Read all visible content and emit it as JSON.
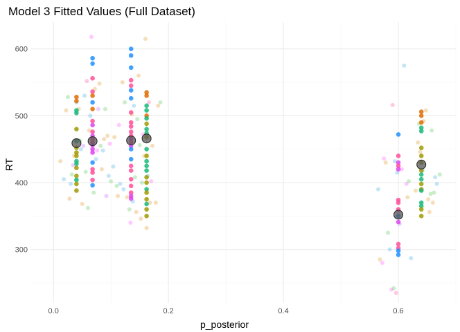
{
  "chart_data": {
    "type": "scatter",
    "title": "Model 3 Fitted Values (Full Dataset)",
    "xlabel": "p_posterior",
    "ylabel": "RT",
    "xlim": [
      -0.04,
      0.7
    ],
    "ylim": [
      220,
      640
    ],
    "xticks": [
      0.0,
      0.2,
      0.4,
      0.6
    ],
    "xtick_labels": [
      "0.0",
      "0.2",
      "0.4",
      "0.6"
    ],
    "yticks": [
      300,
      400,
      500,
      600
    ],
    "ytick_labels": [
      "300",
      "400",
      "500",
      "600"
    ],
    "grid": true,
    "legend": "none",
    "series": [
      {
        "role": "raw observations (light, transparent)",
        "opacity": 0.35,
        "points": [
          [
            0.012,
            432,
            "#e6a03c"
          ],
          [
            0.018,
            405,
            "#56b4e9"
          ],
          [
            0.022,
            508,
            "#e6a03c"
          ],
          [
            0.025,
            528,
            "#66cc66"
          ],
          [
            0.028,
            376,
            "#e6a03c"
          ],
          [
            0.03,
            398,
            "#56b4e9"
          ],
          [
            0.032,
            412,
            "#66cc66"
          ],
          [
            0.034,
            426,
            "#cc79ff"
          ],
          [
            0.036,
            440,
            "#e6a03c"
          ],
          [
            0.04,
            520,
            "#56b4e9"
          ],
          [
            0.044,
            510,
            "#e6a03c"
          ],
          [
            0.046,
            463,
            "#66cc66"
          ],
          [
            0.048,
            450,
            "#56b4e9"
          ],
          [
            0.05,
            368,
            "#e6a03c"
          ],
          [
            0.052,
            455,
            "#cc79ff"
          ],
          [
            0.054,
            530,
            "#56b4e9"
          ],
          [
            0.056,
            416,
            "#66cc66"
          ],
          [
            0.058,
            552,
            "#ff66aa"
          ],
          [
            0.06,
            362,
            "#66cc66"
          ],
          [
            0.062,
            478,
            "#e6a03c"
          ],
          [
            0.064,
            500,
            "#56b4e9"
          ],
          [
            0.066,
            618,
            "#ff66ff"
          ],
          [
            0.07,
            385,
            "#66cc66"
          ],
          [
            0.072,
            540,
            "#e6a03c"
          ],
          [
            0.074,
            435,
            "#56b4e9"
          ],
          [
            0.076,
            448,
            "#ff66ff"
          ],
          [
            0.078,
            510,
            "#cc79ff"
          ],
          [
            0.08,
            548,
            "#e6a03c"
          ],
          [
            0.082,
            455,
            "#66cc66"
          ],
          [
            0.084,
            420,
            "#e6a03c"
          ],
          [
            0.086,
            448,
            "#56b4e9"
          ],
          [
            0.088,
            465,
            "#e6a03c"
          ],
          [
            0.09,
            510,
            "#66cc66"
          ],
          [
            0.092,
            380,
            "#cc79ff"
          ],
          [
            0.094,
            470,
            "#e6a03c"
          ],
          [
            0.096,
            410,
            "#56b4e9"
          ],
          [
            0.098,
            458,
            "#ff66ff"
          ],
          [
            0.1,
            402,
            "#66cc66"
          ],
          [
            0.104,
            424,
            "#56b4e9"
          ],
          [
            0.106,
            468,
            "#e6a03c"
          ],
          [
            0.11,
            395,
            "#66cc66"
          ],
          [
            0.112,
            380,
            "#e6a03c"
          ],
          [
            0.114,
            486,
            "#ff66ff"
          ],
          [
            0.116,
            398,
            "#56b4e9"
          ],
          [
            0.12,
            550,
            "#e6a03c"
          ],
          [
            0.122,
            390,
            "#56b4e9"
          ],
          [
            0.124,
            520,
            "#66cc66"
          ],
          [
            0.128,
            378,
            "#e6a03c"
          ],
          [
            0.132,
            360,
            "#66cc66"
          ],
          [
            0.134,
            340,
            "#ff66ff"
          ],
          [
            0.136,
            502,
            "#e6a03c"
          ],
          [
            0.138,
            372,
            "#56b4e9"
          ],
          [
            0.14,
            515,
            "#56b4e9"
          ],
          [
            0.142,
            408,
            "#66cc66"
          ],
          [
            0.144,
            356,
            "#e6a03c"
          ],
          [
            0.146,
            495,
            "#66cc66"
          ],
          [
            0.148,
            560,
            "#e6a03c"
          ],
          [
            0.15,
            456,
            "#66cc66"
          ],
          [
            0.152,
            346,
            "#e6a03c"
          ],
          [
            0.154,
            400,
            "#66cc66"
          ],
          [
            0.156,
            472,
            "#ff66ff"
          ],
          [
            0.158,
            440,
            "#e6a03c"
          ],
          [
            0.16,
            615,
            "#e6a03c"
          ],
          [
            0.162,
            332,
            "#e6a03c"
          ],
          [
            0.164,
            410,
            "#56b4e9"
          ],
          [
            0.166,
            520,
            "#ff66aa"
          ],
          [
            0.168,
            370,
            "#e6a03c"
          ],
          [
            0.17,
            402,
            "#ff66ff"
          ],
          [
            0.172,
            455,
            "#e6a03c"
          ],
          [
            0.178,
            370,
            "#e6a03c"
          ],
          [
            0.182,
            515,
            "#e6a03c"
          ],
          [
            0.186,
            520,
            "#66cc66"
          ],
          [
            0.565,
            390,
            "#56b4e9"
          ],
          [
            0.568,
            285,
            "#e6a03c"
          ],
          [
            0.572,
            280,
            "#ff66ff"
          ],
          [
            0.575,
            436,
            "#ff66ff"
          ],
          [
            0.578,
            430,
            "#e6a03c"
          ],
          [
            0.582,
            325,
            "#66cc66"
          ],
          [
            0.585,
            300,
            "#56b4e9"
          ],
          [
            0.588,
            240,
            "#ff66ff"
          ],
          [
            0.59,
            516,
            "#ff66aa"
          ],
          [
            0.592,
            242,
            "#66cc66"
          ],
          [
            0.594,
            432,
            "#56b4e9"
          ],
          [
            0.596,
            235,
            "#ff66aa"
          ],
          [
            0.598,
            415,
            "#56b4e9"
          ],
          [
            0.6,
            356,
            "#ff66aa"
          ],
          [
            0.602,
            338,
            "#cc79ff"
          ],
          [
            0.606,
            420,
            "#ff66ff"
          ],
          [
            0.61,
            575,
            "#56b4e9"
          ],
          [
            0.614,
            398,
            "#ff66ff"
          ],
          [
            0.616,
            378,
            "#e6a03c"
          ],
          [
            0.618,
            402,
            "#66cc66"
          ],
          [
            0.622,
            287,
            "#56b4e9"
          ],
          [
            0.63,
            388,
            "#e6a03c"
          ],
          [
            0.634,
            460,
            "#e6a03c"
          ],
          [
            0.636,
            488,
            "#66cc66"
          ],
          [
            0.638,
            446,
            "#e6a03c"
          ],
          [
            0.642,
            418,
            "#56b4e9"
          ],
          [
            0.644,
            492,
            "#e6a03c"
          ],
          [
            0.648,
            508,
            "#e6a03c"
          ],
          [
            0.652,
            375,
            "#e6a03c"
          ],
          [
            0.654,
            356,
            "#e6a03c"
          ],
          [
            0.656,
            383,
            "#66cc66"
          ],
          [
            0.658,
            478,
            "#66cc66"
          ],
          [
            0.66,
            370,
            "#e6a03c"
          ],
          [
            0.662,
            385,
            "#66cc66"
          ],
          [
            0.664,
            408,
            "#56b4e9"
          ],
          [
            0.667,
            398,
            "#56b4e9"
          ],
          [
            0.672,
            412,
            "#66cc66"
          ]
        ]
      },
      {
        "role": "fitted values (solid)",
        "opacity": 0.85,
        "points": [
          [
            0.04,
            528,
            "#e06c00"
          ],
          [
            0.04,
            522,
            "#e06c00"
          ],
          [
            0.04,
            508,
            "#17b978"
          ],
          [
            0.04,
            504,
            "#17b978"
          ],
          [
            0.04,
            480,
            "#a09a00"
          ],
          [
            0.04,
            462,
            "#17b978"
          ],
          [
            0.04,
            452,
            "#a09a00"
          ],
          [
            0.04,
            445,
            "#a09a00"
          ],
          [
            0.04,
            440,
            "#a09a00"
          ],
          [
            0.04,
            432,
            "#17b978"
          ],
          [
            0.04,
            428,
            "#17b978"
          ],
          [
            0.04,
            422,
            "#a09a00"
          ],
          [
            0.04,
            410,
            "#a09a00"
          ],
          [
            0.04,
            404,
            "#17b978"
          ],
          [
            0.04,
            398,
            "#a09a00"
          ],
          [
            0.04,
            388,
            "#a09a00"
          ],
          [
            0.068,
            586,
            "#1e90ff"
          ],
          [
            0.068,
            578,
            "#1e90ff"
          ],
          [
            0.068,
            556,
            "#ff4f9a"
          ],
          [
            0.068,
            536,
            "#ff4f9a"
          ],
          [
            0.068,
            530,
            "#e06c00"
          ],
          [
            0.068,
            520,
            "#1e90ff"
          ],
          [
            0.068,
            510,
            "#e06c00"
          ],
          [
            0.068,
            492,
            "#ff4f9a"
          ],
          [
            0.068,
            486,
            "#dd44ee"
          ],
          [
            0.068,
            476,
            "#ff4f9a"
          ],
          [
            0.068,
            470,
            "#dd44ee"
          ],
          [
            0.068,
            465,
            "#ff4f9a"
          ],
          [
            0.068,
            460,
            "#ff4f9a"
          ],
          [
            0.068,
            456,
            "#dd44ee"
          ],
          [
            0.068,
            450,
            "#dd44ee"
          ],
          [
            0.068,
            445,
            "#dd44ee"
          ],
          [
            0.068,
            430,
            "#1e90ff"
          ],
          [
            0.068,
            420,
            "#ff4f9a"
          ],
          [
            0.068,
            415,
            "#ff4f9a"
          ],
          [
            0.068,
            404,
            "#ff4f9a"
          ],
          [
            0.068,
            396,
            "#1e90ff"
          ],
          [
            0.135,
            600,
            "#1e90ff"
          ],
          [
            0.135,
            590,
            "#1e90ff"
          ],
          [
            0.135,
            572,
            "#1e90ff"
          ],
          [
            0.135,
            553,
            "#ff4f9a"
          ],
          [
            0.135,
            545,
            "#ff4f9a"
          ],
          [
            0.135,
            538,
            "#1e90ff"
          ],
          [
            0.135,
            526,
            "#1e90ff"
          ],
          [
            0.135,
            505,
            "#ff4f9a"
          ],
          [
            0.135,
            490,
            "#ff4f9a"
          ],
          [
            0.135,
            484,
            "#ff4f9a"
          ],
          [
            0.135,
            476,
            "#ff4f9a"
          ],
          [
            0.135,
            470,
            "#ff4f9a"
          ],
          [
            0.135,
            465,
            "#dd44ee"
          ],
          [
            0.135,
            460,
            "#ff4f9a"
          ],
          [
            0.135,
            455,
            "#dd44ee"
          ],
          [
            0.135,
            450,
            "#1e90ff"
          ],
          [
            0.135,
            435,
            "#1e90ff"
          ],
          [
            0.135,
            425,
            "#ff4f9a"
          ],
          [
            0.135,
            418,
            "#ff4f9a"
          ],
          [
            0.135,
            405,
            "#ff4f9a"
          ],
          [
            0.135,
            395,
            "#ff4f9a"
          ],
          [
            0.135,
            385,
            "#ff4f9a"
          ],
          [
            0.135,
            380,
            "#dd44ee"
          ],
          [
            0.135,
            376,
            "#dd44ee"
          ],
          [
            0.162,
            535,
            "#e06c00"
          ],
          [
            0.162,
            530,
            "#e06c00"
          ],
          [
            0.162,
            515,
            "#17b978"
          ],
          [
            0.162,
            508,
            "#17b978"
          ],
          [
            0.162,
            500,
            "#e06c00"
          ],
          [
            0.162,
            496,
            "#17b978"
          ],
          [
            0.162,
            488,
            "#a09a00"
          ],
          [
            0.162,
            480,
            "#17b978"
          ],
          [
            0.162,
            474,
            "#17b978"
          ],
          [
            0.162,
            468,
            "#a09a00"
          ],
          [
            0.162,
            450,
            "#17b978"
          ],
          [
            0.162,
            440,
            "#a09a00"
          ],
          [
            0.162,
            432,
            "#17b978"
          ],
          [
            0.162,
            425,
            "#17b978"
          ],
          [
            0.162,
            418,
            "#17b978"
          ],
          [
            0.162,
            408,
            "#a09a00"
          ],
          [
            0.162,
            400,
            "#a09a00"
          ],
          [
            0.162,
            390,
            "#17b978"
          ],
          [
            0.162,
            385,
            "#a09a00"
          ],
          [
            0.162,
            375,
            "#a09a00"
          ],
          [
            0.162,
            368,
            "#17b978"
          ],
          [
            0.162,
            360,
            "#a09a00"
          ],
          [
            0.162,
            350,
            "#a09a00"
          ],
          [
            0.6,
            472,
            "#1e90ff"
          ],
          [
            0.6,
            440,
            "#ff4f9a"
          ],
          [
            0.6,
            430,
            "#dd44ee"
          ],
          [
            0.6,
            425,
            "#ff4f9a"
          ],
          [
            0.6,
            420,
            "#dd44ee"
          ],
          [
            0.6,
            374,
            "#ff4f9a"
          ],
          [
            0.6,
            370,
            "#ff4f9a"
          ],
          [
            0.6,
            360,
            "#ff4f9a"
          ],
          [
            0.6,
            350,
            "#1e90ff"
          ],
          [
            0.6,
            341,
            "#dd44ee"
          ],
          [
            0.6,
            308,
            "#ff4f9a"
          ],
          [
            0.6,
            302,
            "#ff4f9a"
          ],
          [
            0.6,
            298,
            "#1e90ff"
          ],
          [
            0.6,
            292,
            "#1e90ff"
          ],
          [
            0.64,
            506,
            "#e06c00"
          ],
          [
            0.64,
            500,
            "#e06c00"
          ],
          [
            0.64,
            490,
            "#e06c00"
          ],
          [
            0.64,
            482,
            "#17b978"
          ],
          [
            0.64,
            477,
            "#17b978"
          ],
          [
            0.64,
            452,
            "#a09a00"
          ],
          [
            0.64,
            440,
            "#a09a00"
          ],
          [
            0.64,
            430,
            "#a09a00"
          ],
          [
            0.64,
            418,
            "#a09a00"
          ],
          [
            0.64,
            412,
            "#17b978"
          ],
          [
            0.64,
            405,
            "#17b978"
          ],
          [
            0.64,
            398,
            "#a09a00"
          ],
          [
            0.64,
            390,
            "#a09a00"
          ],
          [
            0.64,
            388,
            "#17b978"
          ],
          [
            0.64,
            370,
            "#17b978"
          ],
          [
            0.64,
            365,
            "#17b978"
          ],
          [
            0.64,
            360,
            "#a09a00"
          ],
          [
            0.64,
            350,
            "#a09a00"
          ]
        ]
      },
      {
        "role": "group means (large grey)",
        "color": "#555555",
        "points": [
          [
            0.04,
            459
          ],
          [
            0.068,
            462
          ],
          [
            0.135,
            463
          ],
          [
            0.162,
            466
          ],
          [
            0.6,
            352
          ],
          [
            0.64,
            427
          ]
        ]
      }
    ]
  }
}
